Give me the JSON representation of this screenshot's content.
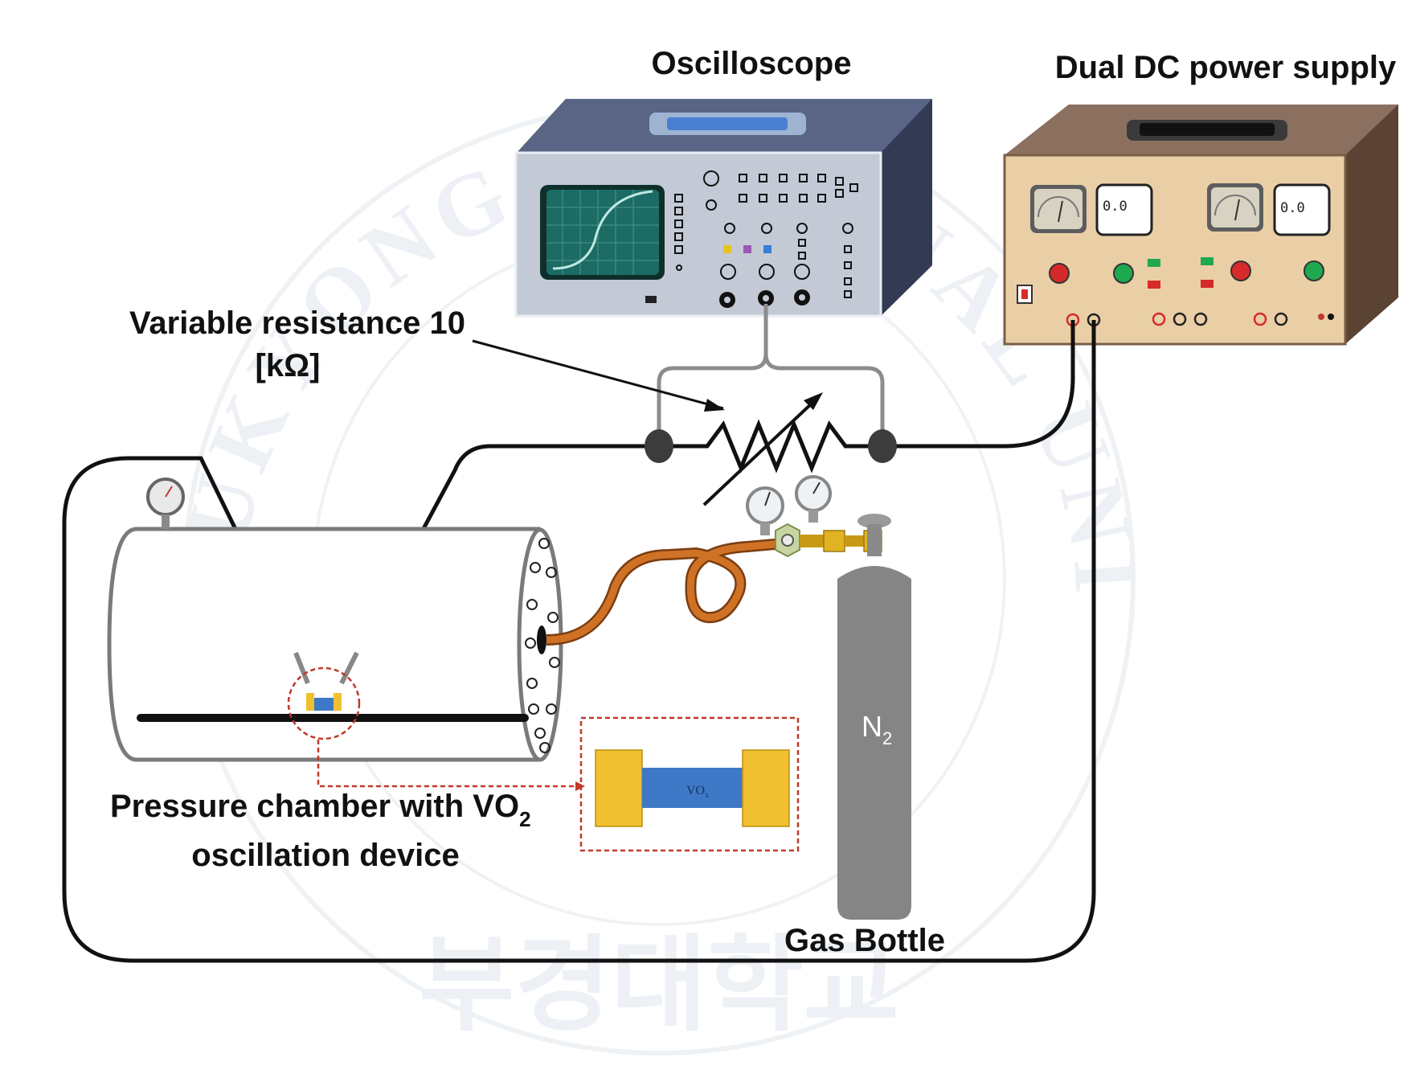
{
  "labels": {
    "oscilloscope": "Oscilloscope",
    "power_supply": "Dual DC power supply",
    "resistance_line1": "Variable resistance 10",
    "resistance_line2": "[kΩ]",
    "chamber_line1_main": "Pressure chamber with VO",
    "chamber_line1_sub": "2",
    "chamber_line2": "oscillation device",
    "gas_bottle": "Gas Bottle",
    "n2_main": "N",
    "n2_sub": "2",
    "device_label": "VO",
    "device_sub": "x"
  },
  "power_supply": {
    "display_left": "0.0",
    "display_right": "0.0"
  },
  "watermark": {
    "arc_text": "PUKYONG NATIONAL UNIVERSITY",
    "korean": "부경대학교"
  },
  "colors": {
    "oscilloscope_body": "#4b5677",
    "oscilloscope_panel": "#b6bfcf",
    "screen": "#1c6b64",
    "supply_body": "#7d6450",
    "supply_panel": "#e9cfa6",
    "wire": "#111111",
    "hose": "#c9681f",
    "cylinder": "#7a7a7a",
    "electrode": "#f0c030",
    "vo2_film": "#3d79c7",
    "dashed_callout": "#c0392b"
  }
}
